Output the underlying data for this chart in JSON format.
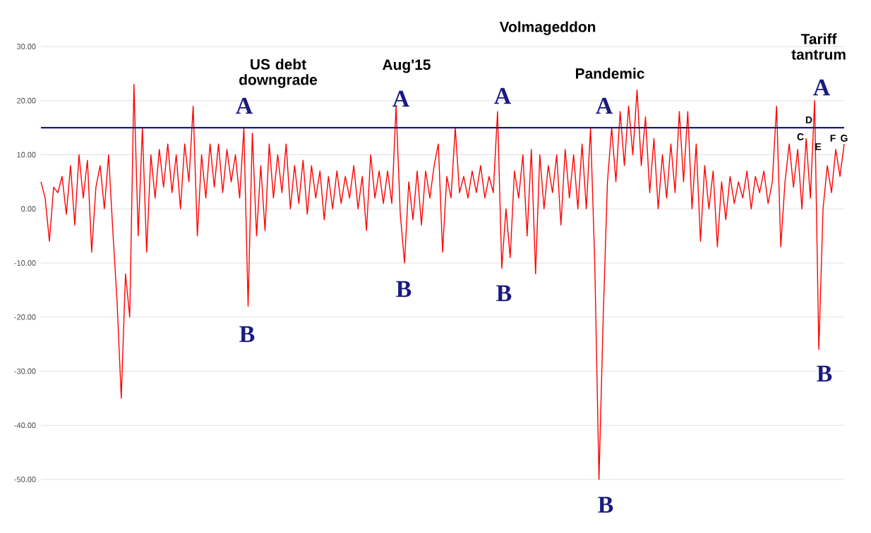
{
  "chart_data": {
    "type": "line",
    "annotations": [
      "US debt downgrade",
      "A",
      "B",
      "Aug'15",
      "A",
      "B",
      "Volmageddon",
      "A",
      "B",
      "Pandemic",
      "A",
      "B",
      "Tariff tantrum",
      "A",
      "B",
      "C",
      "D",
      "E",
      "F",
      "G"
    ],
    "ylim": [
      -50,
      30
    ],
    "yticks": [
      {
        "value": -50,
        "label": "-50.00"
      },
      {
        "value": -40,
        "label": "-40.00"
      },
      {
        "value": -30,
        "label": "-30.00"
      },
      {
        "value": -20,
        "label": "-20.00"
      },
      {
        "value": -10,
        "label": "-10.00"
      },
      {
        "value": 0,
        "label": "0.00"
      },
      {
        "value": 10,
        "label": "10.00"
      },
      {
        "value": 20,
        "label": "20.00"
      },
      {
        "value": 30,
        "label": "30.00"
      }
    ],
    "grid": "y",
    "ref_lines": [
      {
        "axis": "y",
        "value": 15,
        "color": "#1a1a80"
      }
    ],
    "series": [
      {
        "color": "#ff0000",
        "values": [
          5,
          2,
          -6,
          4,
          3,
          6,
          -1,
          8,
          -3,
          10,
          2,
          9,
          -8,
          4,
          8,
          0,
          10,
          -4,
          -17,
          -35,
          -12,
          -20,
          23,
          -5,
          15,
          -8,
          10,
          2,
          11,
          4,
          12,
          3,
          10,
          0,
          12,
          5,
          19,
          -5,
          10,
          2,
          12,
          4,
          12,
          3,
          11,
          5,
          10,
          2,
          15,
          -18,
          14,
          -5,
          8,
          -4,
          12,
          2,
          10,
          3,
          12,
          0,
          8,
          1,
          9,
          -1,
          8,
          2,
          7,
          -2,
          6,
          0,
          7,
          1,
          6,
          2,
          8,
          0,
          6,
          -4,
          10,
          2,
          7,
          1,
          7,
          1,
          19,
          -1,
          -10,
          5,
          -2,
          7,
          -3,
          7,
          2,
          8,
          12,
          -8,
          6,
          2,
          15,
          3,
          6,
          2,
          7,
          3,
          8,
          2,
          6,
          3,
          18,
          -11,
          0,
          -9,
          7,
          2,
          10,
          -5,
          11,
          -12,
          10,
          0,
          8,
          3,
          10,
          -3,
          11,
          2,
          10,
          0,
          12,
          0,
          15,
          -10,
          -50,
          -20,
          5,
          15,
          5,
          18,
          8,
          19,
          10,
          22,
          8,
          17,
          3,
          13,
          0,
          10,
          2,
          12,
          3,
          18,
          5,
          18,
          0,
          12,
          -6,
          8,
          0,
          7,
          -7,
          5,
          -2,
          6,
          1,
          5,
          2,
          7,
          0,
          6,
          3,
          7,
          1,
          5,
          19,
          -7,
          5,
          12,
          4,
          11,
          0,
          13,
          2,
          20,
          -26,
          0,
          8,
          3,
          11,
          6,
          12
        ]
      }
    ],
    "categories": [
      null,
      null,
      null,
      null,
      null,
      null,
      null,
      null,
      null,
      null,
      null,
      null,
      null,
      null,
      null,
      null,
      null,
      null,
      null,
      null,
      null,
      null,
      null,
      null,
      null,
      null,
      null,
      null,
      null,
      null,
      null,
      null,
      null,
      null,
      null,
      null,
      null,
      null,
      null,
      null,
      null,
      null,
      null,
      null,
      null,
      null,
      null,
      null,
      null,
      null,
      null,
      null,
      null,
      null,
      null,
      null,
      null,
      null,
      null,
      null,
      null,
      null,
      null,
      null,
      null,
      null,
      null,
      null,
      null,
      null,
      null,
      null,
      null,
      null,
      null,
      null,
      null,
      null,
      null,
      null,
      null,
      null,
      null,
      null,
      null,
      null,
      null,
      null,
      null,
      null,
      null,
      null,
      null,
      null,
      null,
      null,
      null,
      null,
      null,
      null,
      null,
      null,
      null,
      null,
      null,
      null,
      null,
      null,
      null,
      null,
      null,
      null,
      null,
      null,
      null,
      null,
      null,
      null,
      null,
      null,
      null,
      null,
      null,
      null,
      null,
      null,
      null,
      null,
      null,
      null,
      null,
      null,
      null,
      null,
      null,
      null,
      null,
      null,
      null,
      null,
      null,
      null,
      null,
      null,
      null,
      null,
      null,
      null,
      null,
      null,
      null,
      null,
      null,
      null,
      null,
      null,
      null,
      null,
      null,
      null,
      null,
      null,
      null,
      null,
      null,
      null,
      null,
      null,
      null,
      null,
      null,
      null,
      null,
      null,
      null,
      null,
      null,
      null,
      null,
      null,
      null,
      null,
      null,
      null,
      null,
      null,
      null,
      null,
      null,
      null,
      null
    ]
  }
}
